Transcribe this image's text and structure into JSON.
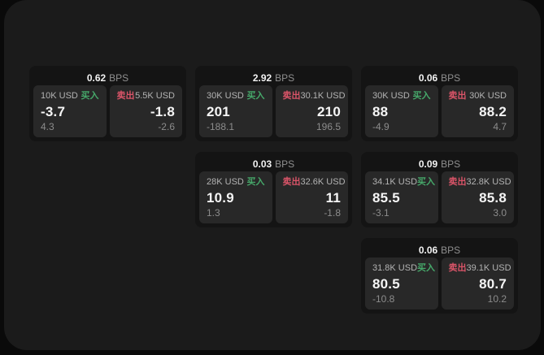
{
  "labels": {
    "bps_suffix": "BPS",
    "buy": "买入",
    "sell": "卖出"
  },
  "colors": {
    "outer_bg": "#0a0a0a",
    "page_bg": "#1b1b1b",
    "card_bg": "#141414",
    "panel_bg": "#282828",
    "buy_green": "#46a86a",
    "sell_red": "#d95468",
    "price_white": "#f5f5f5",
    "muted_gray": "#8c8c8c"
  },
  "cards": [
    {
      "col": 1,
      "row": 1,
      "bps": "0.62",
      "buy": {
        "size": "10K USD",
        "price": "-3.7",
        "delta": "4.3"
      },
      "sell": {
        "size": "5.5K USD",
        "price": "-1.8",
        "delta": "-2.6"
      }
    },
    {
      "col": 2,
      "row": 1,
      "bps": "2.92",
      "buy": {
        "size": "30K USD",
        "price": "201",
        "delta": "-188.1"
      },
      "sell": {
        "size": "30.1K USD",
        "price": "210",
        "delta": "196.5"
      }
    },
    {
      "col": 3,
      "row": 1,
      "bps": "0.06",
      "buy": {
        "size": "30K USD",
        "price": "88",
        "delta": "-4.9"
      },
      "sell": {
        "size": "30K USD",
        "price": "88.2",
        "delta": "4.7"
      }
    },
    {
      "col": 2,
      "row": 2,
      "bps": "0.03",
      "buy": {
        "size": "28K USD",
        "price": "10.9",
        "delta": "1.3"
      },
      "sell": {
        "size": "32.6K USD",
        "price": "11",
        "delta": "-1.8"
      }
    },
    {
      "col": 3,
      "row": 2,
      "bps": "0.09",
      "buy": {
        "size": "34.1K USD",
        "price": "85.5",
        "delta": "-3.1"
      },
      "sell": {
        "size": "32.8K USD",
        "price": "85.8",
        "delta": "3.0"
      }
    },
    {
      "col": 3,
      "row": 3,
      "bps": "0.06",
      "buy": {
        "size": "31.8K USD",
        "price": "80.5",
        "delta": "-10.8"
      },
      "sell": {
        "size": "39.1K USD",
        "price": "80.7",
        "delta": "10.2"
      }
    }
  ]
}
